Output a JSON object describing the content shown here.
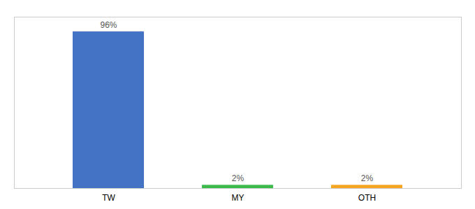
{
  "chart_data": {
    "type": "bar",
    "categories": [
      "TW",
      "MY",
      "OTH"
    ],
    "values": [
      96,
      2,
      2
    ],
    "value_labels": [
      "96%",
      "2%",
      "2%"
    ],
    "colors": [
      "#4472c4",
      "#3dba4e",
      "#f5a623"
    ],
    "ylim": [
      0,
      105
    ],
    "data_labels": true,
    "tick_labels": "x"
  }
}
